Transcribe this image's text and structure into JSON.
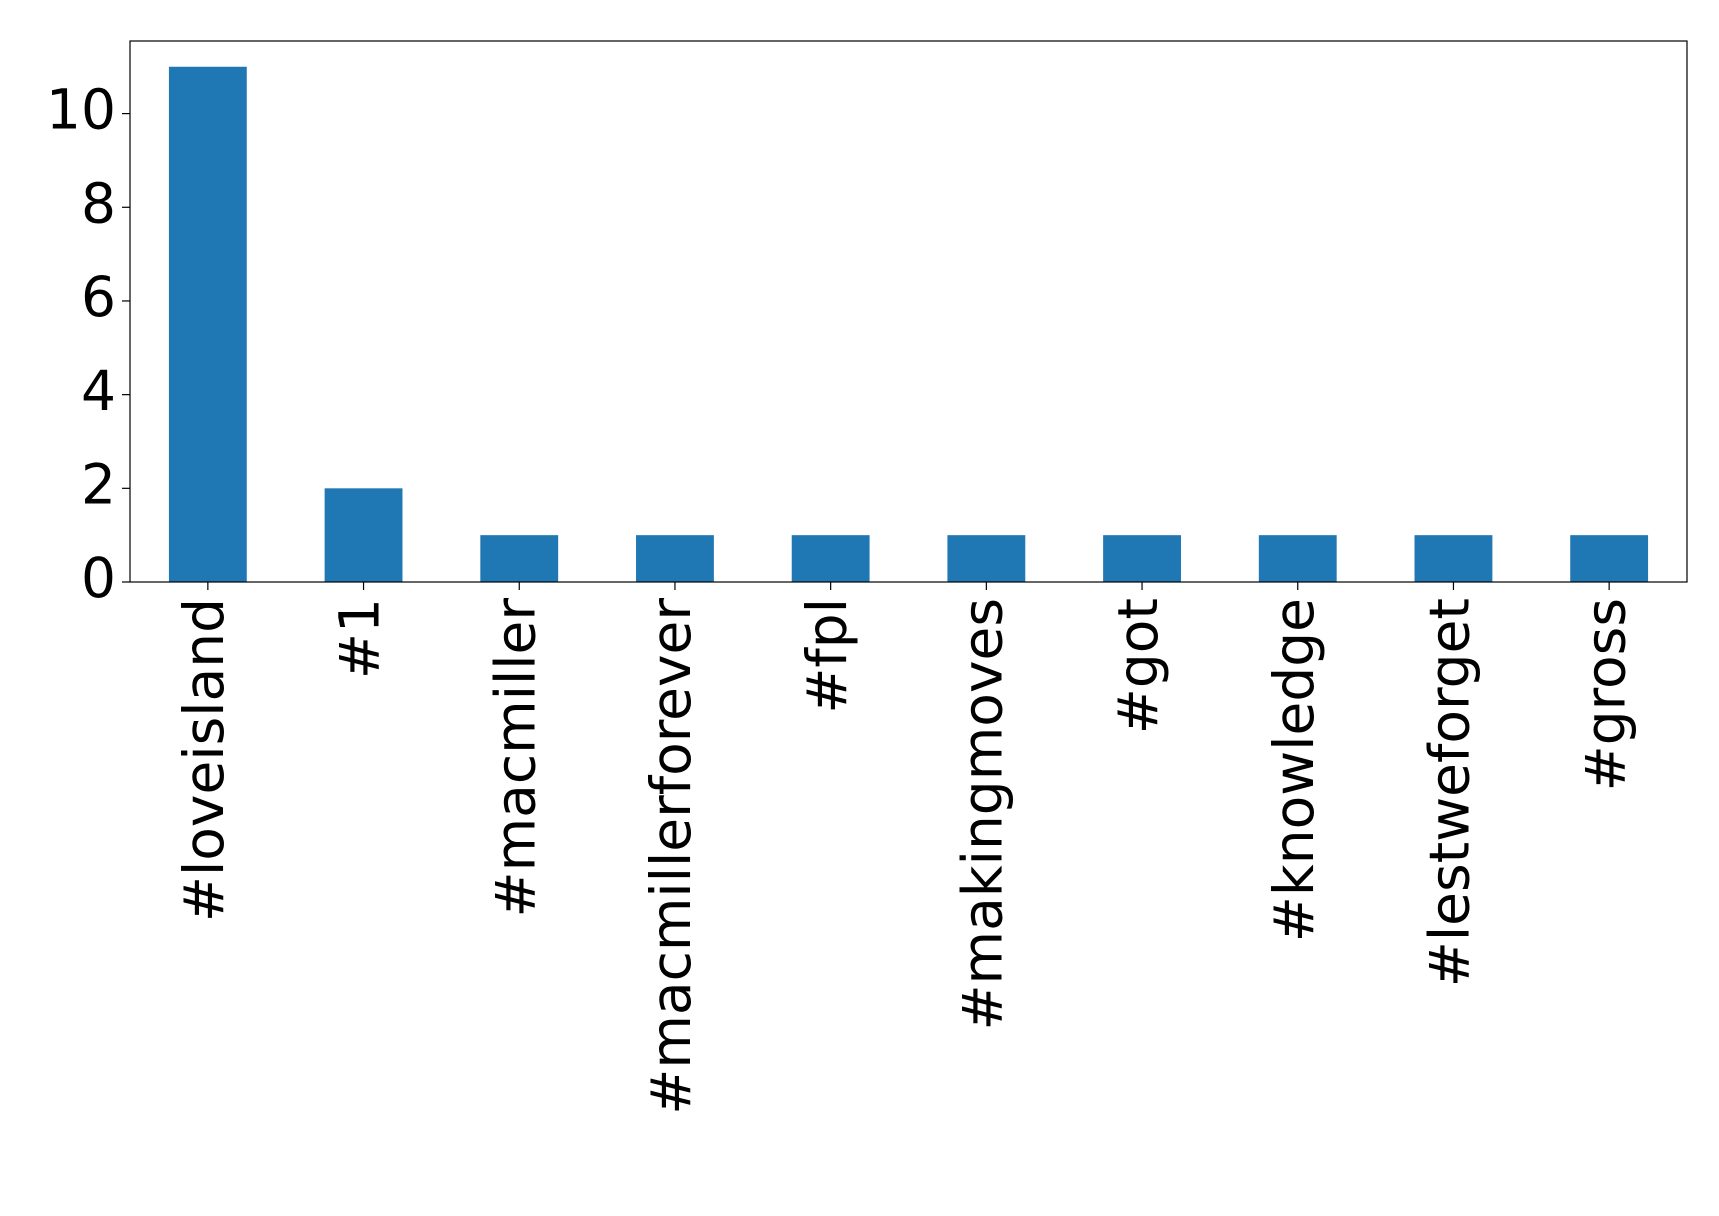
{
  "chart_data": {
    "type": "bar",
    "categories": [
      "#loveisland",
      "#1",
      "#macmiller",
      "#macmillerforever",
      "#fpl",
      "#makingmoves",
      "#got",
      "#knowledge",
      "#lestweforget",
      "#gross"
    ],
    "values": [
      11,
      2,
      1,
      1,
      1,
      1,
      1,
      1,
      1,
      1
    ],
    "color": "#1f77b4",
    "ylim": [
      0,
      11.55
    ],
    "yticks": [
      0,
      2,
      4,
      6,
      8,
      10
    ],
    "grid": false
  }
}
